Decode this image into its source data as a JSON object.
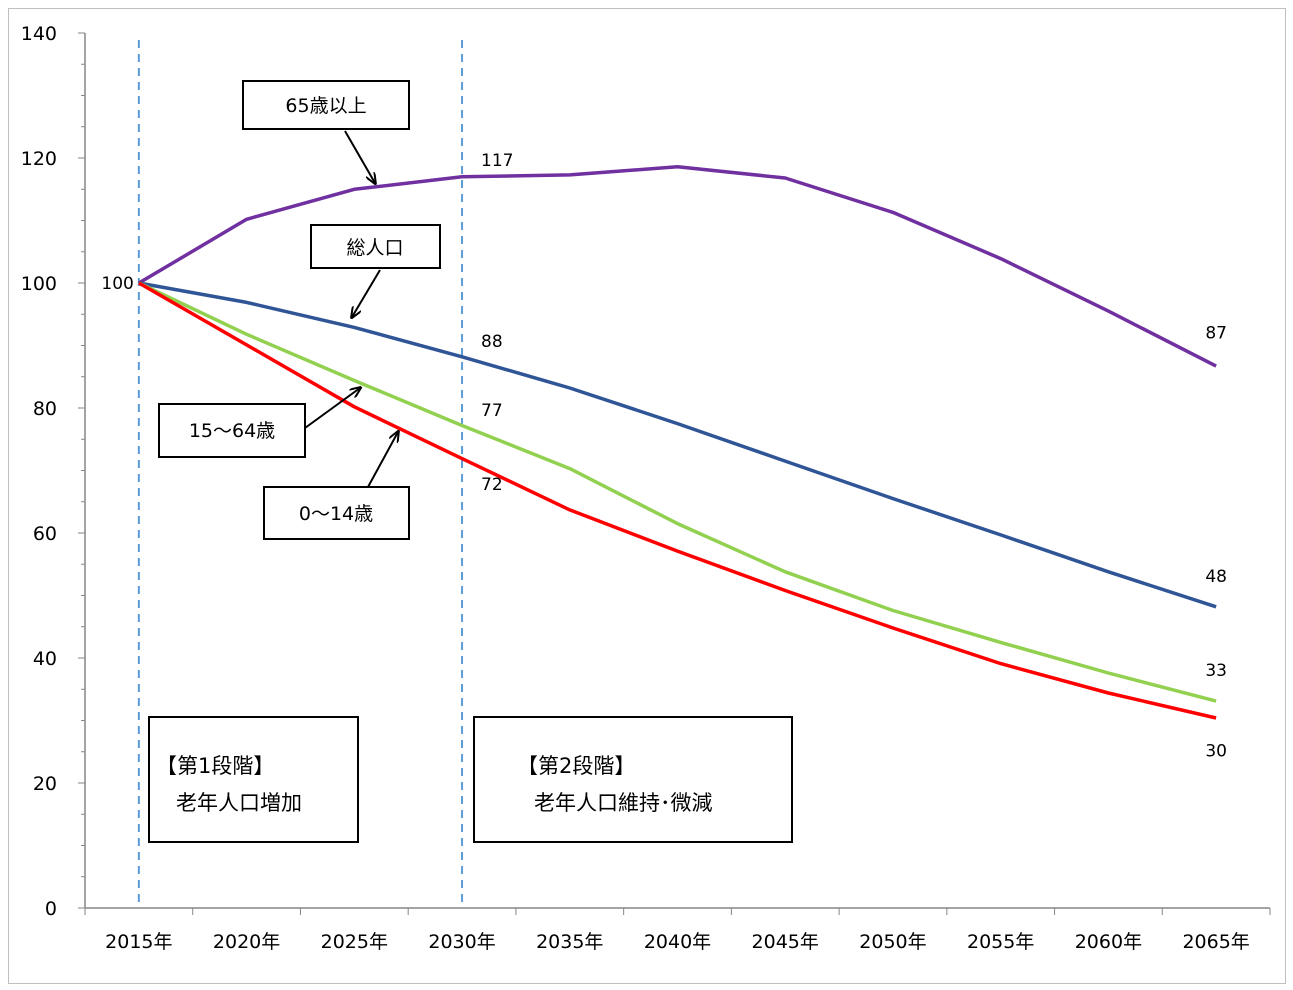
{
  "chart_data": {
    "type": "line",
    "categories": [
      "2015年",
      "2020年",
      "2025年",
      "2030年",
      "2035年",
      "2040年",
      "2045年",
      "2050年",
      "2055年",
      "2060年",
      "2065年"
    ],
    "ylim": [
      0,
      140
    ],
    "yticks": [
      0,
      20,
      40,
      60,
      80,
      100,
      120,
      140
    ],
    "grid": false,
    "series": [
      {
        "name": "65歳以上",
        "color": "#7030a0",
        "values": [
          100,
          110.2,
          115.0,
          117.0,
          117.3,
          118.6,
          116.8,
          111.3,
          103.9,
          95.5,
          86.7
        ]
      },
      {
        "name": "総人口",
        "color": "#2f5597",
        "values": [
          100,
          96.9,
          92.9,
          88.2,
          83.2,
          77.5,
          71.5,
          65.5,
          59.7,
          53.8,
          48.2
        ]
      },
      {
        "name": "15～64歳",
        "color": "#92d050",
        "values": [
          100,
          91.8,
          84.4,
          77.2,
          70.3,
          61.5,
          53.8,
          47.6,
          42.5,
          37.6,
          33.1
        ]
      },
      {
        "name": "0～14歳",
        "color": "#ff0000",
        "values": [
          100,
          90.1,
          80.2,
          71.9,
          63.7,
          57.1,
          50.8,
          44.8,
          39.1,
          34.4,
          30.4
        ]
      }
    ],
    "data_labels": [
      {
        "text": "100",
        "x_index": 0,
        "y": 100
      },
      {
        "text": "117",
        "x_index": 3,
        "y": 117
      },
      {
        "text": "88",
        "x_index": 3,
        "y": 88
      },
      {
        "text": "77",
        "x_index": 3,
        "y": 77
      },
      {
        "text": "72",
        "x_index": 3,
        "y": 72
      },
      {
        "text": "87",
        "x_index": 10,
        "y": 87
      },
      {
        "text": "48",
        "x_index": 10,
        "y": 48
      },
      {
        "text": "33",
        "x_index": 10,
        "y": 33
      },
      {
        "text": "30",
        "x_index": 10,
        "y": 30
      }
    ],
    "phase_dividers": {
      "x_indices": [
        0,
        3
      ],
      "color": "#5b9bd5"
    },
    "callouts": [
      {
        "text": "65歳以上"
      },
      {
        "text": "総人口"
      },
      {
        "text": "15～64歳"
      },
      {
        "text": "0～14歳"
      }
    ],
    "phases": [
      {
        "heading": "【第1段階】",
        "body": "老年人口増加"
      },
      {
        "heading": "【第2段階】",
        "body": "老年人口維持･微減"
      }
    ]
  }
}
